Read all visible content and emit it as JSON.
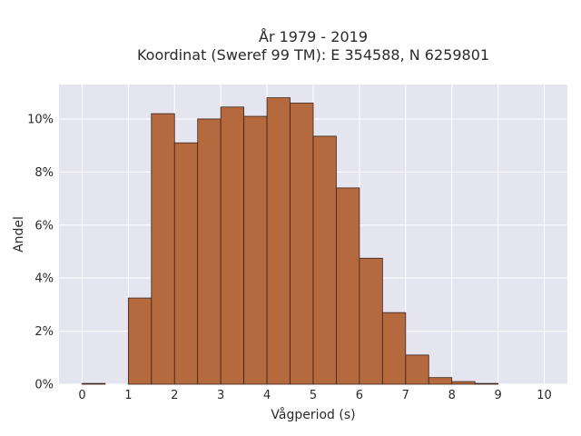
{
  "chart_data": {
    "type": "bar",
    "title_line1": "År 1979 - 2019",
    "title_line2": "Koordinat (Sweref 99 TM): E 354588, N 6259801",
    "xlabel": "Vågperiod (s)",
    "ylabel": "Andel",
    "xlim": [
      -0.5,
      10.5
    ],
    "ylim": [
      0,
      11.3
    ],
    "xticks": [
      0,
      1,
      2,
      3,
      4,
      5,
      6,
      7,
      8,
      9,
      10
    ],
    "yticks": [
      0,
      2,
      4,
      6,
      8,
      10
    ],
    "ytick_labels": [
      "0%",
      "2%",
      "4%",
      "6%",
      "8%",
      "10%"
    ],
    "bin_width": 0.5,
    "bin_starts": [
      0,
      0.5,
      1.0,
      1.5,
      2.0,
      2.5,
      3.0,
      3.5,
      4.0,
      4.5,
      5.0,
      5.5,
      6.0,
      6.5,
      7.0,
      7.5,
      8.0,
      8.5,
      9.0,
      9.5
    ],
    "values": [
      0.03,
      0,
      3.25,
      10.2,
      9.1,
      10.0,
      10.45,
      10.1,
      10.8,
      10.6,
      9.35,
      7.4,
      4.75,
      2.7,
      1.1,
      0.25,
      0.1,
      0.03,
      0,
      0
    ],
    "grid": true,
    "bar_color": "#b5693e",
    "bar_edge_color": "#3a2418",
    "background_color": "#e5e5f0"
  }
}
